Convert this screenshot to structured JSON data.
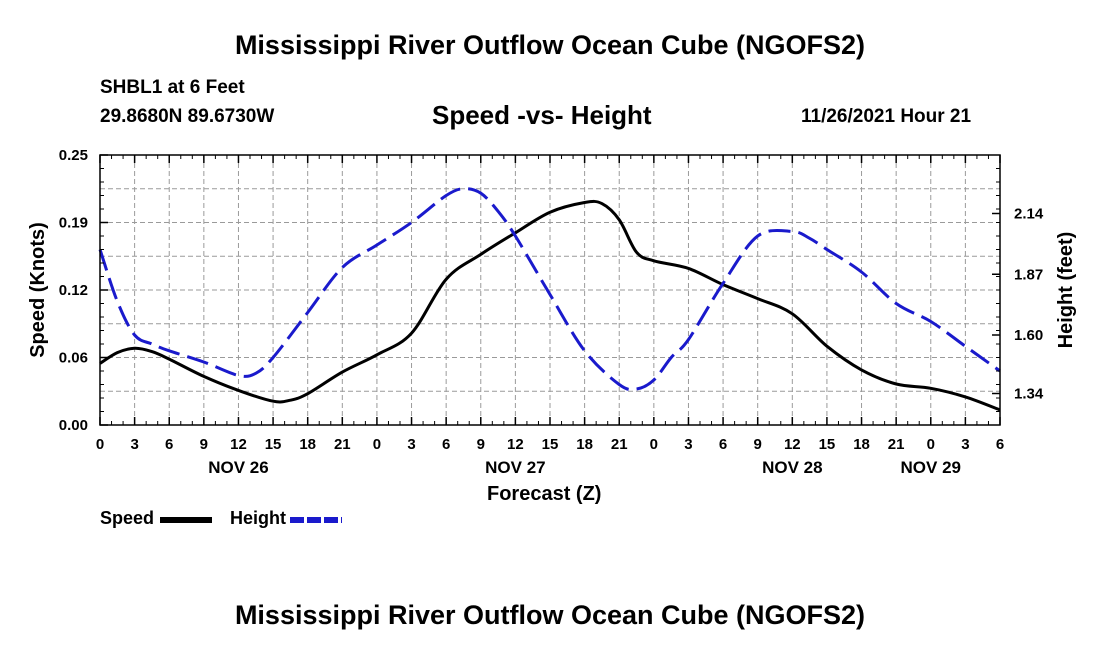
{
  "page": {
    "title": "Mississippi River Outflow Ocean Cube (NGOFS2)",
    "footer_title": "Mississippi River Outflow Ocean Cube (NGOFS2)",
    "station": "SHBL1 at 6 Feet",
    "coords": "29.8680N  89.6730W",
    "timestamp": "11/26/2021 Hour 21"
  },
  "chart_data": {
    "type": "line",
    "title": "Speed -vs- Height",
    "xlabel": "Forecast (Z)",
    "ylabel_left": "Speed (Knots)",
    "ylabel_right": "Height (feet)",
    "x_range": [
      0,
      78
    ],
    "y_left_range": [
      0,
      0.25
    ],
    "y_right_range": [
      1.2,
      2.4
    ],
    "y_left_ticks": [
      "0.00",
      "0.06",
      "0.12",
      "0.19",
      "0.25"
    ],
    "y_left_tick_values": [
      0,
      0.0625,
      0.125,
      0.1875,
      0.25
    ],
    "y_right_ticks": [
      "1.34",
      "1.60",
      "1.87",
      "2.14"
    ],
    "y_right_tick_values": [
      1.34,
      1.6,
      1.87,
      2.14
    ],
    "x_tick_labels": [
      "0",
      "3",
      "6",
      "9",
      "12",
      "15",
      "18",
      "21",
      "0",
      "3",
      "6",
      "9",
      "12",
      "15",
      "18",
      "21",
      "0",
      "3",
      "6",
      "9",
      "12",
      "15",
      "18",
      "21",
      "0",
      "3",
      "6"
    ],
    "day_labels": [
      {
        "label": "NOV 26",
        "hour": 12
      },
      {
        "label": "NOV 27",
        "hour": 36
      },
      {
        "label": "NOV 28",
        "hour": 60
      },
      {
        "label": "NOV 29",
        "hour": 72
      }
    ],
    "grid": true,
    "series": [
      {
        "name": "Speed",
        "axis": "left",
        "color": "#000000",
        "style": "solid",
        "x": [
          0,
          1.5,
          3,
          4.5,
          6,
          9,
          12,
          15,
          16.5,
          18,
          21,
          24,
          27,
          30,
          33,
          36,
          39,
          42,
          43.5,
          45,
          46.5,
          48,
          51,
          54,
          57,
          60,
          63,
          66,
          69,
          72,
          75,
          78
        ],
        "y": [
          0.057,
          0.067,
          0.071,
          0.068,
          0.061,
          0.045,
          0.032,
          0.022,
          0.023,
          0.029,
          0.049,
          0.065,
          0.085,
          0.135,
          0.158,
          0.178,
          0.197,
          0.206,
          0.205,
          0.19,
          0.16,
          0.152,
          0.145,
          0.13,
          0.117,
          0.103,
          0.073,
          0.051,
          0.038,
          0.034,
          0.026,
          0.014
        ]
      },
      {
        "name": "Height",
        "axis": "right",
        "color": "#1a1acc",
        "style": "dashed",
        "x": [
          0,
          1.5,
          3,
          4.5,
          6,
          9,
          12,
          13.5,
          15,
          18,
          21,
          24,
          27,
          30,
          31.5,
          33,
          34.5,
          36,
          39,
          42,
          45,
          46.5,
          48,
          49.5,
          51,
          54,
          57,
          60,
          61.5,
          63,
          66,
          69,
          72,
          75,
          78
        ],
        "y": [
          1.98,
          1.75,
          1.6,
          1.56,
          1.53,
          1.48,
          1.42,
          1.43,
          1.5,
          1.7,
          1.9,
          2.0,
          2.1,
          2.22,
          2.25,
          2.23,
          2.15,
          2.04,
          1.78,
          1.53,
          1.38,
          1.36,
          1.4,
          1.5,
          1.58,
          1.83,
          2.04,
          2.06,
          2.03,
          1.98,
          1.88,
          1.74,
          1.66,
          1.55,
          1.44
        ]
      }
    ]
  }
}
